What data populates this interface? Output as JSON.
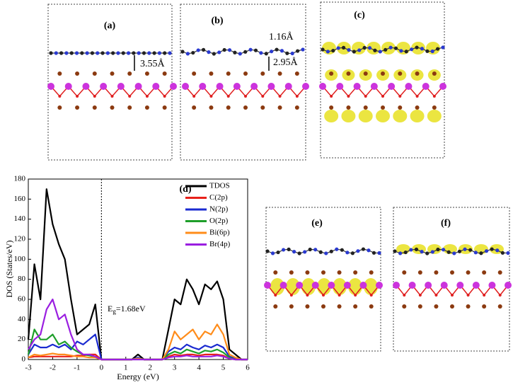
{
  "panels": {
    "a": {
      "label": "(a)",
      "distance": "3.55Å"
    },
    "b": {
      "label": "(b)",
      "distances": [
        "1.16Å",
        "2.95Å"
      ]
    },
    "c": {
      "label": "(c)"
    },
    "e": {
      "label": "(e)"
    },
    "f": {
      "label": "(f)"
    }
  },
  "chart_data": {
    "type": "line",
    "label": "(d)",
    "x_label": "Energy (eV)",
    "y_label": "DOS (States/eV)",
    "annotation": {
      "symbol": "E",
      "subscript": "g",
      "text": "=1.68eV"
    },
    "fermi_line": 0,
    "xlim": [
      -3,
      6
    ],
    "ylim": [
      0,
      180
    ],
    "xticks": [
      -3,
      -2,
      -1,
      0,
      1,
      2,
      3,
      4,
      5,
      6
    ],
    "yticks": [
      0,
      20,
      40,
      60,
      80,
      100,
      120,
      140,
      160,
      180
    ],
    "legend": "upper right",
    "x": [
      -3,
      -2.75,
      -2.5,
      -2.25,
      -2,
      -1.75,
      -1.5,
      -1.25,
      -1,
      -0.75,
      -0.5,
      -0.25,
      0,
      0.25,
      0.5,
      0.75,
      1,
      1.25,
      1.5,
      1.75,
      2,
      2.25,
      2.5,
      2.75,
      3,
      3.25,
      3.5,
      3.75,
      4,
      4.25,
      4.5,
      4.75,
      5,
      5.25,
      5.5,
      5.75,
      6
    ],
    "series": [
      {
        "name": "TDOS",
        "color": "#000000",
        "values": [
          20,
          95,
          60,
          170,
          135,
          115,
          100,
          60,
          25,
          30,
          35,
          55,
          0,
          0,
          0,
          0,
          0,
          0,
          5,
          0,
          0,
          0,
          0,
          30,
          60,
          55,
          80,
          70,
          55,
          75,
          70,
          78,
          60,
          10,
          5,
          0,
          0
        ]
      },
      {
        "name": "C(2p)",
        "color": "#e8201a",
        "values": [
          2,
          3,
          3,
          3,
          3,
          3,
          3,
          3,
          4,
          4,
          5,
          5,
          0,
          0,
          0,
          0,
          0,
          0,
          1,
          0,
          0,
          0,
          0,
          3,
          5,
          4,
          5,
          5,
          4,
          5,
          5,
          5,
          4,
          1,
          0,
          0,
          0
        ]
      },
      {
        "name": "N(2p)",
        "color": "#1a2ad0",
        "values": [
          5,
          15,
          12,
          12,
          15,
          12,
          15,
          10,
          18,
          15,
          20,
          25,
          0,
          0,
          0,
          0,
          0,
          0,
          2,
          0,
          0,
          0,
          0,
          8,
          12,
          10,
          15,
          12,
          10,
          14,
          12,
          15,
          12,
          3,
          1,
          0,
          0
        ]
      },
      {
        "name": "O(2p)",
        "color": "#1e9e2a",
        "values": [
          5,
          30,
          20,
          20,
          25,
          15,
          18,
          12,
          8,
          5,
          4,
          3,
          0,
          0,
          0,
          0,
          0,
          0,
          1,
          0,
          0,
          0,
          0,
          5,
          8,
          6,
          10,
          8,
          6,
          9,
          8,
          10,
          7,
          2,
          0,
          0,
          0
        ]
      },
      {
        "name": "Bi(6p)",
        "color": "#ff8c1a",
        "values": [
          2,
          5,
          4,
          5,
          6,
          5,
          5,
          4,
          3,
          3,
          2,
          2,
          0,
          0,
          0,
          0,
          0,
          0,
          1,
          0,
          0,
          0,
          0,
          10,
          28,
          20,
          25,
          30,
          20,
          28,
          25,
          35,
          25,
          5,
          2,
          0,
          0
        ]
      },
      {
        "name": "Br(4p)",
        "color": "#9a1ee0",
        "values": [
          10,
          20,
          25,
          50,
          60,
          40,
          45,
          25,
          10,
          5,
          5,
          3,
          0,
          0,
          0,
          0,
          0,
          0,
          0,
          0,
          0,
          0,
          0,
          2,
          3,
          3,
          4,
          3,
          3,
          3,
          3,
          4,
          3,
          1,
          0,
          0,
          0
        ]
      }
    ]
  }
}
